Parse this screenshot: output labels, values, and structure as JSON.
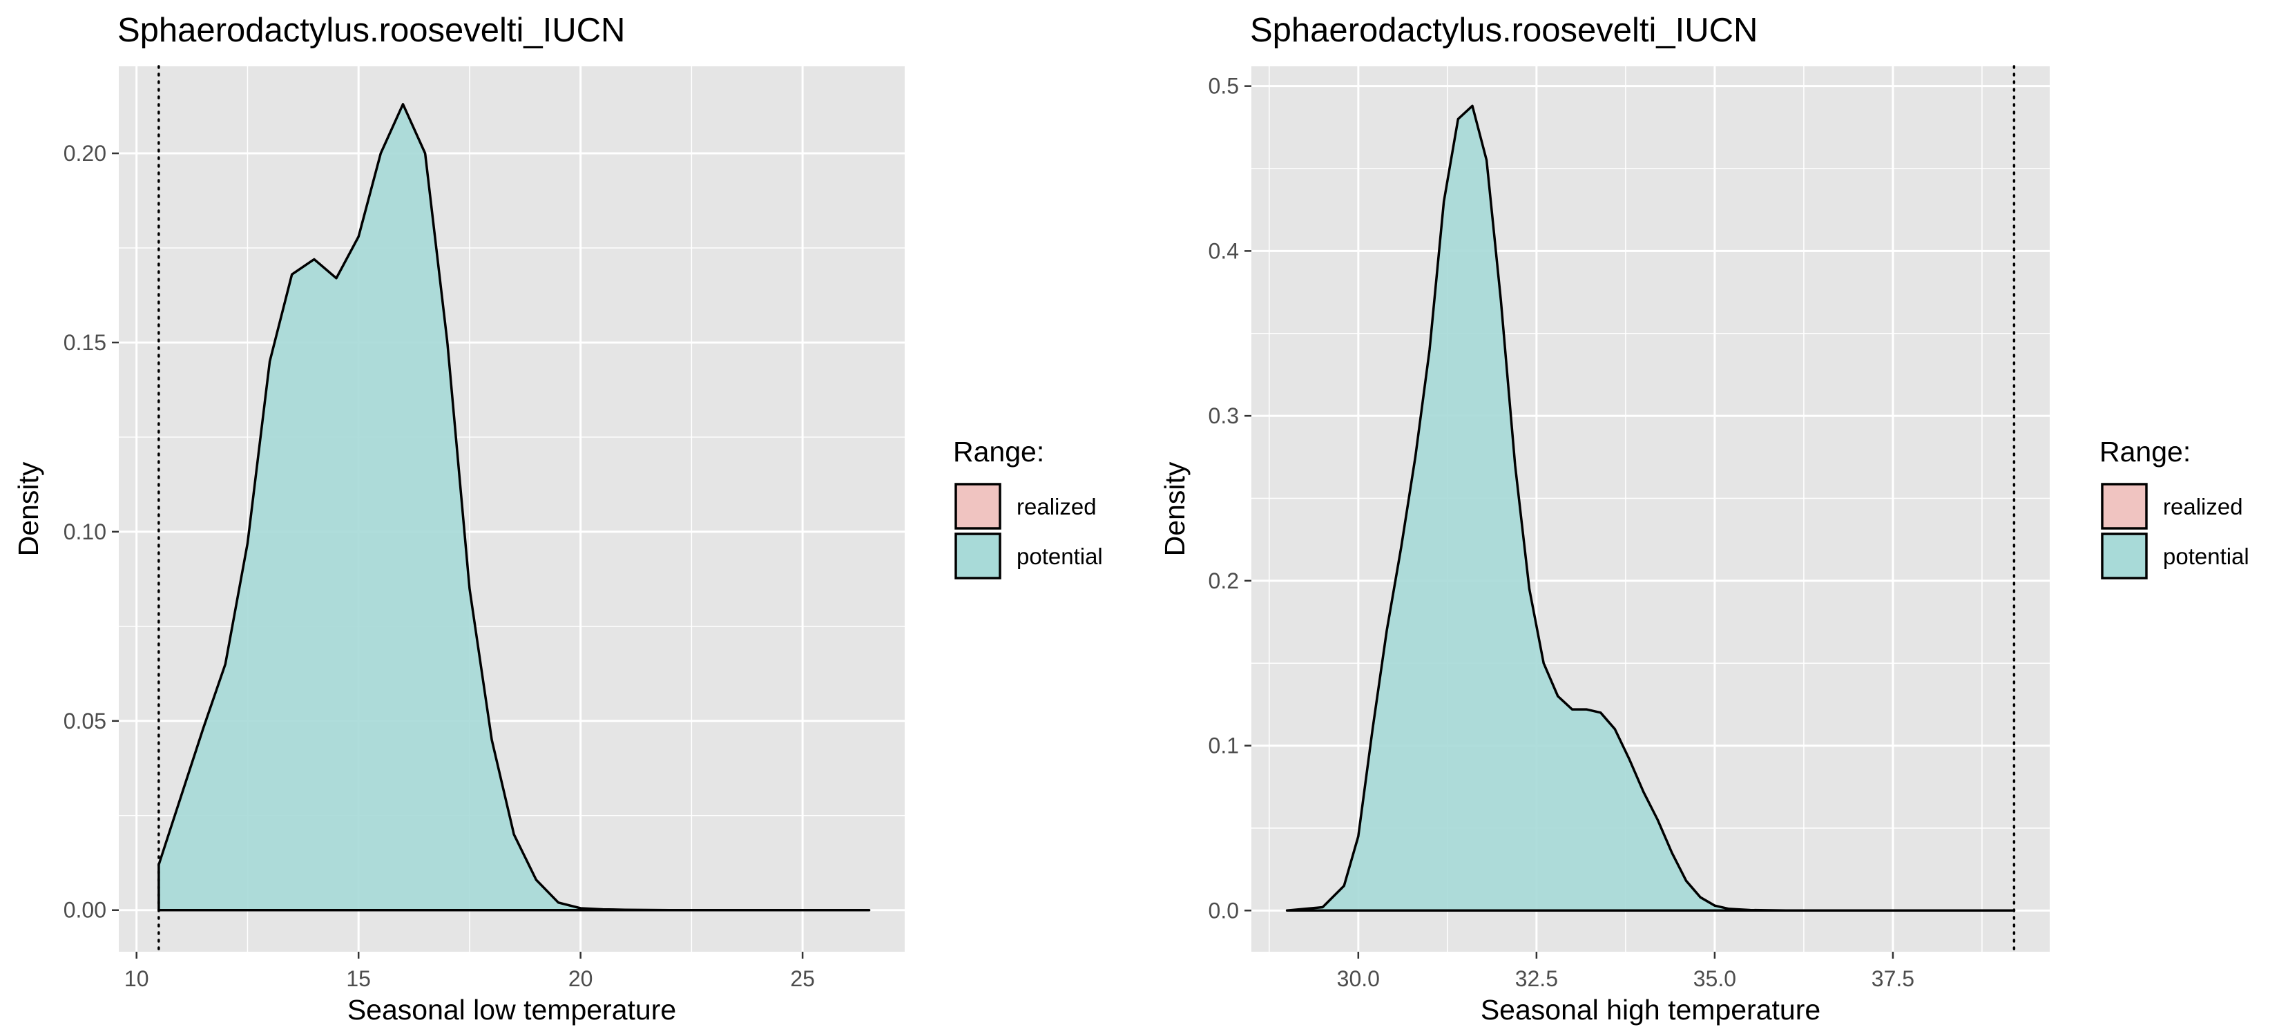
{
  "colors": {
    "panel_background": "#E5E5E5",
    "grid": "#FFFFFF",
    "realized": "#F0C4C1",
    "potential": "#A8DAD8",
    "outline": "#000000",
    "tick_text": "#4D4D4D"
  },
  "chart_data": [
    {
      "type": "area",
      "title": "Sphaerodactylus.roosevelti_IUCN",
      "xlabel": "Seasonal low temperature",
      "ylabel": "Density",
      "xlim": [
        9.6,
        27.3
      ],
      "ylim": [
        -0.011,
        0.223
      ],
      "x_ticks": [
        10,
        15,
        20,
        25
      ],
      "x_tick_labels": [
        "10",
        "15",
        "20",
        "25"
      ],
      "y_ticks": [
        0,
        0.05,
        0.1,
        0.15,
        0.2
      ],
      "y_tick_labels": [
        "0.00",
        "0.05",
        "0.10",
        "0.15",
        "0.20"
      ],
      "grid": true,
      "vline": 10.5,
      "vline_style": "dotted",
      "legend": {
        "title": "Range:",
        "placement": "right",
        "entries": [
          {
            "label": "realized",
            "color": "#F0C4C1"
          },
          {
            "label": "potential",
            "color": "#A8DAD8"
          }
        ]
      },
      "series": [
        {
          "legend_label": "potential",
          "x": [
            10.5,
            10.5,
            11.0,
            11.5,
            12.0,
            12.5,
            13.0,
            13.5,
            14.0,
            14.5,
            15.0,
            15.5,
            16.0,
            16.5,
            17.0,
            17.5,
            18.0,
            18.5,
            19.0,
            19.5,
            20.0,
            20.5,
            21.0,
            22.0,
            23.0,
            24.0,
            25.0,
            26.0,
            26.5
          ],
          "y": [
            0.0,
            0.012,
            0.03,
            0.048,
            0.065,
            0.097,
            0.145,
            0.168,
            0.172,
            0.167,
            0.178,
            0.2,
            0.213,
            0.2,
            0.15,
            0.085,
            0.045,
            0.02,
            0.008,
            0.002,
            0.0005,
            0.0002,
            0.0001,
            0.0,
            0.0,
            0.0,
            0.0,
            0.0,
            0.0
          ]
        }
      ]
    },
    {
      "type": "area",
      "title": "Sphaerodactylus.roosevelti_IUCN",
      "xlabel": "Seasonal high temperature",
      "ylabel": "Density",
      "xlim": [
        28.5,
        39.7
      ],
      "ylim": [
        -0.025,
        0.512
      ],
      "x_ticks": [
        30,
        32.5,
        35,
        37.5
      ],
      "x_tick_labels": [
        "30.0",
        "32.5",
        "35.0",
        "37.5"
      ],
      "y_ticks": [
        0,
        0.1,
        0.2,
        0.3,
        0.4,
        0.5
      ],
      "y_tick_labels": [
        "0.0",
        "0.1",
        "0.2",
        "0.3",
        "0.4",
        "0.5"
      ],
      "grid": true,
      "vline": 39.2,
      "vline_style": "dotted",
      "legend": {
        "title": "Range:",
        "placement": "right",
        "entries": [
          {
            "label": "realized",
            "color": "#F0C4C1"
          },
          {
            "label": "potential",
            "color": "#A8DAD8"
          }
        ]
      },
      "series": [
        {
          "legend_label": "potential",
          "x": [
            29.0,
            29.5,
            29.8,
            30.0,
            30.2,
            30.4,
            30.6,
            30.8,
            31.0,
            31.2,
            31.4,
            31.6,
            31.8,
            32.0,
            32.2,
            32.4,
            32.6,
            32.8,
            33.0,
            33.2,
            33.4,
            33.6,
            33.8,
            34.0,
            34.2,
            34.4,
            34.6,
            34.8,
            35.0,
            35.2,
            35.5,
            36.0,
            37.0,
            38.0,
            39.2
          ],
          "y": [
            0.0,
            0.002,
            0.015,
            0.045,
            0.11,
            0.17,
            0.22,
            0.275,
            0.34,
            0.43,
            0.48,
            0.488,
            0.455,
            0.37,
            0.27,
            0.195,
            0.15,
            0.13,
            0.122,
            0.122,
            0.12,
            0.11,
            0.092,
            0.072,
            0.055,
            0.035,
            0.018,
            0.008,
            0.003,
            0.001,
            0.0003,
            0.0,
            0.0,
            0.0,
            0.0
          ]
        }
      ]
    }
  ]
}
